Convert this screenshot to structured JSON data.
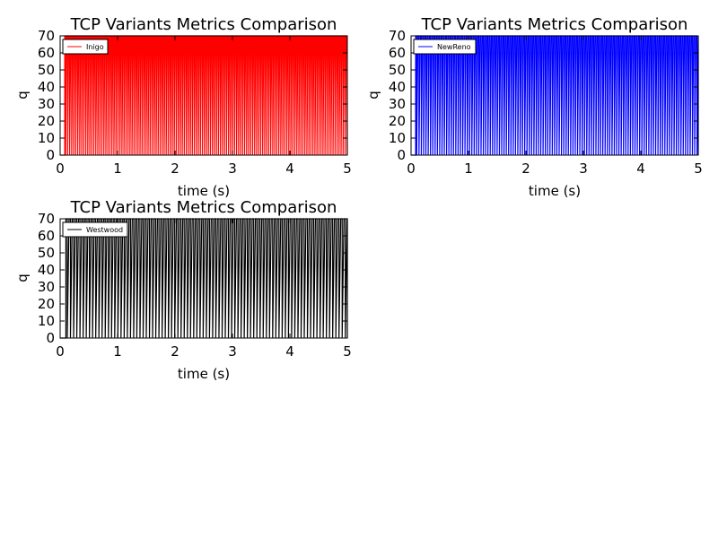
{
  "chart_data": [
    {
      "type": "line",
      "title": "TCP Variants Metrics Comparison",
      "xlabel": "time (s)",
      "ylabel": "q",
      "xlim": [
        0,
        5
      ],
      "ylim": [
        0,
        70
      ],
      "xticks": [
        0,
        1,
        2,
        3,
        4,
        5
      ],
      "yticks": [
        0,
        10,
        20,
        30,
        40,
        50,
        60,
        70
      ],
      "grid": false,
      "legend_position": "upper left",
      "series": [
        {
          "name": "Inigo",
          "color": "#ff0000",
          "pattern": "rapid oscillation between 0 and 70 (queue fills to capacity and drains)",
          "start_time": 0.08,
          "period": 0.035,
          "min": 0,
          "max": 70
        }
      ]
    },
    {
      "type": "line",
      "title": "TCP Variants Metrics Comparison",
      "xlabel": "time (s)",
      "ylabel": "q",
      "xlim": [
        0,
        5
      ],
      "ylim": [
        0,
        70
      ],
      "xticks": [
        0,
        1,
        2,
        3,
        4,
        5
      ],
      "yticks": [
        0,
        10,
        20,
        30,
        40,
        50,
        60,
        70
      ],
      "grid": false,
      "legend_position": "upper left",
      "series": [
        {
          "name": "NewReno",
          "color": "#0000ff",
          "pattern": "rapid oscillation between 0 and 70 (queue fills to capacity and drains)",
          "start_time": 0.08,
          "period": 0.04,
          "min": 0,
          "max": 70
        }
      ]
    },
    {
      "type": "line",
      "title": "TCP Variants Metrics Comparison",
      "xlabel": "time (s)",
      "ylabel": "q",
      "xlim": [
        0,
        5
      ],
      "ylim": [
        0,
        70
      ],
      "xticks": [
        0,
        1,
        2,
        3,
        4,
        5
      ],
      "yticks": [
        0,
        10,
        20,
        30,
        40,
        50,
        60,
        70
      ],
      "grid": false,
      "legend_position": "upper left",
      "series": [
        {
          "name": "Westwood",
          "color": "#000000",
          "pattern": "rapid oscillation between 0 and 70 (queue fills to capacity and drains)",
          "start_time": 0.1,
          "period": 0.055,
          "min": 0,
          "max": 70
        }
      ]
    }
  ]
}
